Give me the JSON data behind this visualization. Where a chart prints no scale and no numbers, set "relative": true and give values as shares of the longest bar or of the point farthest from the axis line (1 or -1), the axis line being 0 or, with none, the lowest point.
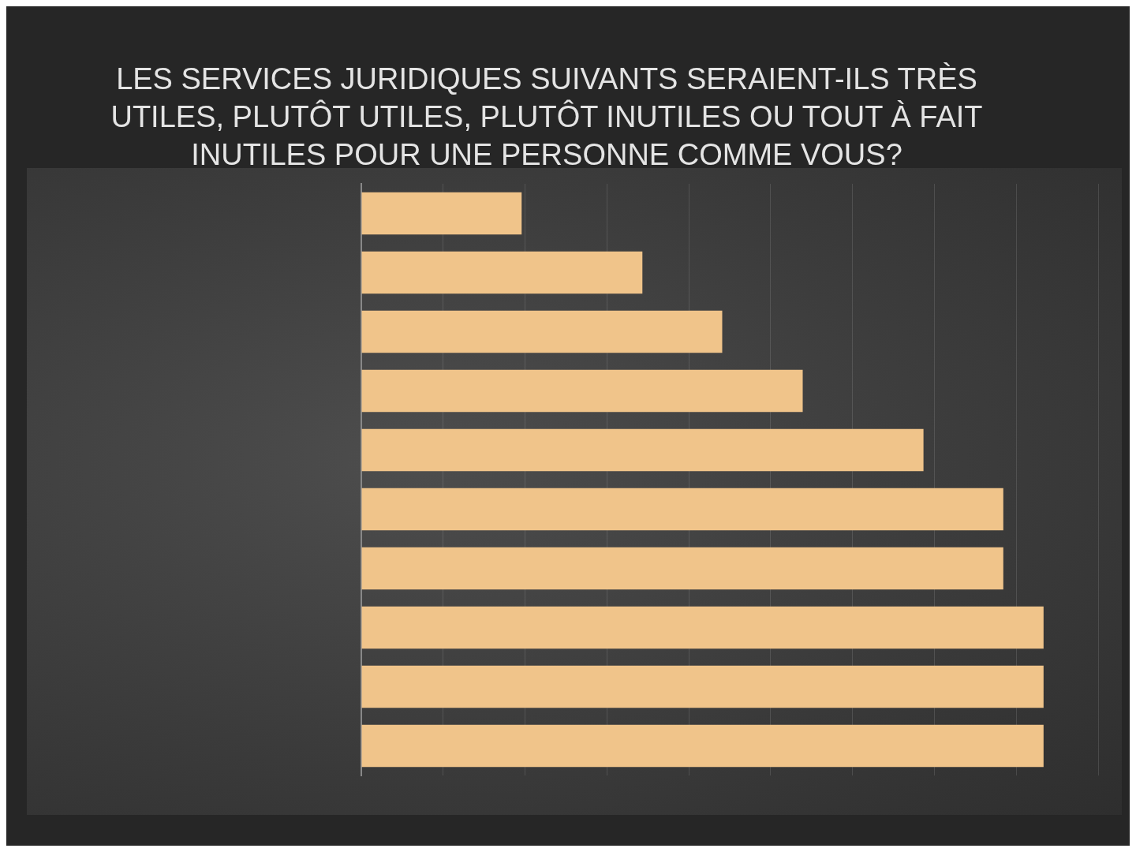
{
  "chart_data": {
    "type": "bar",
    "title": "LES SERVICES JURIDIQUES SUIVANTS SERAIENT-ILS TRÈS UTILES, PLUTÔT UTILES, PLUTÔT INUTILES OU TOUT À FAIT INUTILES POUR UNE PERSONNE COMME VOUS?",
    "orientation": "horizontal",
    "relative": true,
    "categories": [
      null,
      null,
      null,
      null,
      null,
      null,
      null,
      null,
      null,
      null
    ],
    "values": [
      0.235,
      0.412,
      0.529,
      0.647,
      0.824,
      0.941,
      0.941,
      1,
      1,
      1
    ],
    "color": "#f0c48a",
    "grid": "x",
    "legend": false
  }
}
